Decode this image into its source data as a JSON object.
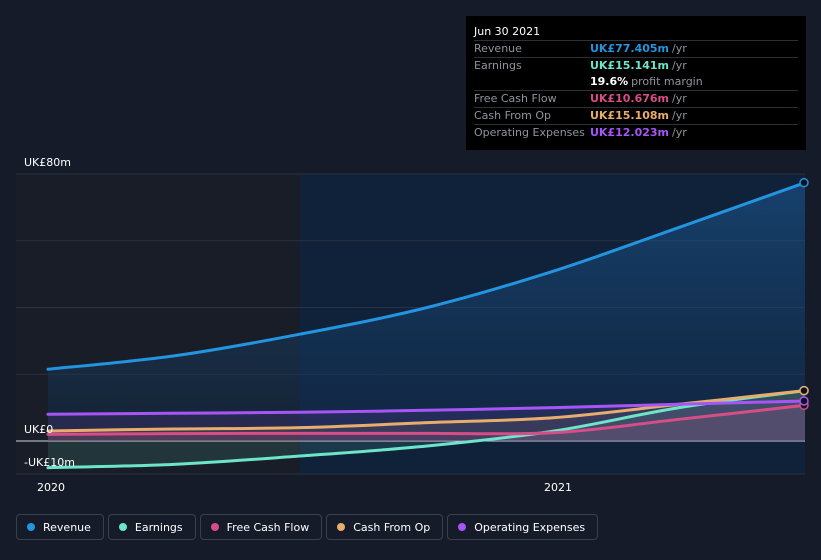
{
  "tooltip": {
    "date": "Jun 30 2021",
    "rows": [
      {
        "label": "Revenue",
        "value": "UK£77.405m",
        "unit": "/yr",
        "color": "#2394df"
      },
      {
        "label": "Earnings",
        "value": "UK£15.141m",
        "unit": "/yr",
        "color": "#6ce5c8"
      },
      {
        "label": "Free Cash Flow",
        "value": "UK£10.676m",
        "unit": "/yr",
        "color": "#d64e87"
      },
      {
        "label": "Cash From Op",
        "value": "UK£15.108m",
        "unit": "/yr",
        "color": "#e8ad6c"
      },
      {
        "label": "Operating Expenses",
        "value": "UK£12.023m",
        "unit": "/yr",
        "color": "#a855f7"
      }
    ],
    "margin_value": "19.6%",
    "margin_text": "profit margin"
  },
  "legend": [
    {
      "label": "Revenue",
      "color": "#2394df"
    },
    {
      "label": "Earnings",
      "color": "#6ce5c8"
    },
    {
      "label": "Free Cash Flow",
      "color": "#d64e87"
    },
    {
      "label": "Cash From Op",
      "color": "#e8ad6c"
    },
    {
      "label": "Operating Expenses",
      "color": "#a855f7"
    }
  ],
  "chart_data": {
    "type": "line",
    "y_tick_labels": [
      "UK£80m",
      "UK£0",
      "-UK£10m"
    ],
    "x_tick_labels": [
      "2020",
      "2021"
    ],
    "ylim": [
      -10,
      80
    ],
    "xlim": [
      "2019-12-31",
      "2021-06-30"
    ],
    "past_data_boundary": "2020-06-30",
    "grid": true,
    "legend_position": "bottom",
    "series": [
      {
        "name": "Revenue",
        "color": "#2394df",
        "x": [
          "2019-12-31",
          "2020-03-31",
          "2020-06-30",
          "2020-09-30",
          "2020-12-31",
          "2021-03-31",
          "2021-06-30"
        ],
        "values": [
          21.5,
          25.5,
          32,
          40,
          51,
          64,
          77.4
        ]
      },
      {
        "name": "Earnings",
        "color": "#6ce5c8",
        "x": [
          "2019-12-31",
          "2020-03-31",
          "2020-06-30",
          "2020-09-30",
          "2020-12-31",
          "2021-03-31",
          "2021-06-30"
        ],
        "values": [
          -8,
          -7,
          -4.5,
          -1.5,
          3,
          10,
          15.1
        ]
      },
      {
        "name": "Free Cash Flow",
        "color": "#d64e87",
        "x": [
          "2019-12-31",
          "2020-03-31",
          "2020-06-30",
          "2020-09-30",
          "2020-12-31",
          "2021-03-31",
          "2021-06-30"
        ],
        "values": [
          2,
          2.2,
          2.3,
          2.3,
          2.5,
          6.5,
          10.7
        ]
      },
      {
        "name": "Cash From Op",
        "color": "#e8ad6c",
        "x": [
          "2019-12-31",
          "2020-03-31",
          "2020-06-30",
          "2020-09-30",
          "2020-12-31",
          "2021-03-31",
          "2021-06-30"
        ],
        "values": [
          3,
          3.6,
          4,
          5.5,
          7,
          11,
          15.1
        ]
      },
      {
        "name": "Operating Expenses",
        "color": "#a855f7",
        "x": [
          "2019-12-31",
          "2020-03-31",
          "2020-06-30",
          "2020-09-30",
          "2020-12-31",
          "2021-03-31",
          "2021-06-30"
        ],
        "values": [
          8,
          8.3,
          8.6,
          9.2,
          10,
          11,
          12
        ]
      }
    ]
  }
}
